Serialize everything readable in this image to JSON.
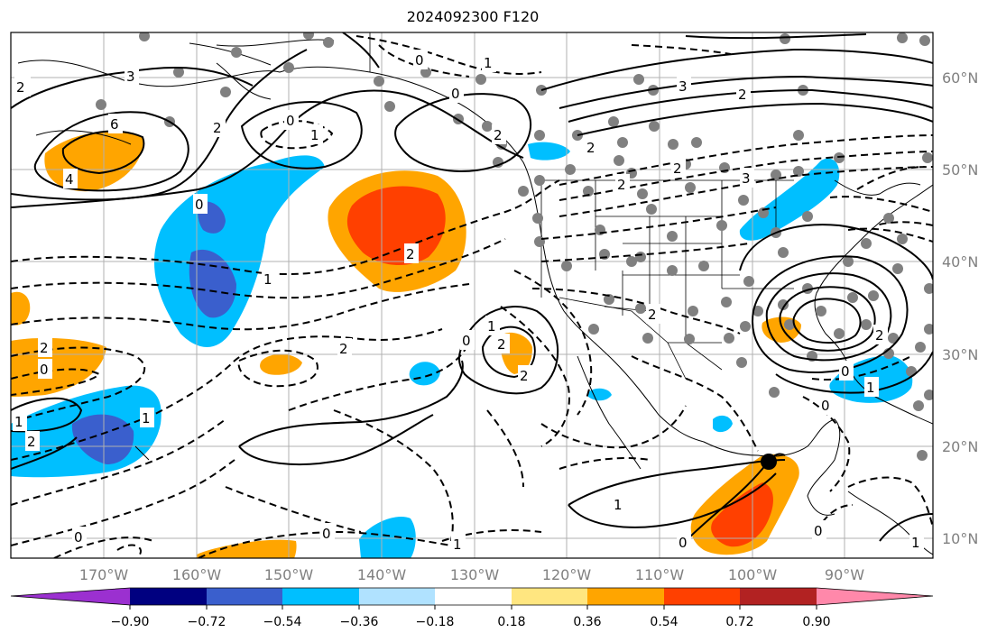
{
  "title": "2024092300 F120",
  "lon_labels": [
    "170°W",
    "160°W",
    "150°W",
    "140°W",
    "130°W",
    "120°W",
    "110°W",
    "100°W",
    "90°W"
  ],
  "lat_labels": [
    "60°N",
    "50°N",
    "40°N",
    "30°N",
    "20°N",
    "10°N"
  ],
  "colorbar": {
    "tick_labels": [
      "−0.90",
      "−0.72",
      "−0.54",
      "−0.36",
      "−0.18",
      "0.18",
      "0.36",
      "0.54",
      "0.72",
      "0.90"
    ],
    "colors": [
      "#9b30d0",
      "#000080",
      "#3a5fcd",
      "#00bfff",
      "#b0e2ff",
      "#ffffff",
      "#ffe680",
      "#ffa500",
      "#ff4000",
      "#b22222",
      "#ff88aa"
    ]
  },
  "contour_labels": [
    "2",
    "3",
    "6",
    "4",
    "2",
    "0",
    "1",
    "0",
    "2",
    "0",
    "1",
    "2",
    "0",
    "1",
    "2",
    "2",
    "0",
    "2",
    "2",
    "0",
    "1",
    "1",
    "2",
    "0",
    "1",
    "0",
    "0",
    "0",
    "2",
    "2",
    "2",
    "3",
    "2",
    "1",
    "3",
    "2",
    "2",
    "0",
    "1",
    "1",
    "0",
    "1"
  ],
  "shade_colors": {
    "orange": "#ffa500",
    "red": "#ff4000",
    "blue": "#00bfff",
    "dark_blue": "#3a5fcd"
  },
  "grid_color": "#b0b0b0",
  "station_color": "#808080",
  "marker_color": "#000000"
}
